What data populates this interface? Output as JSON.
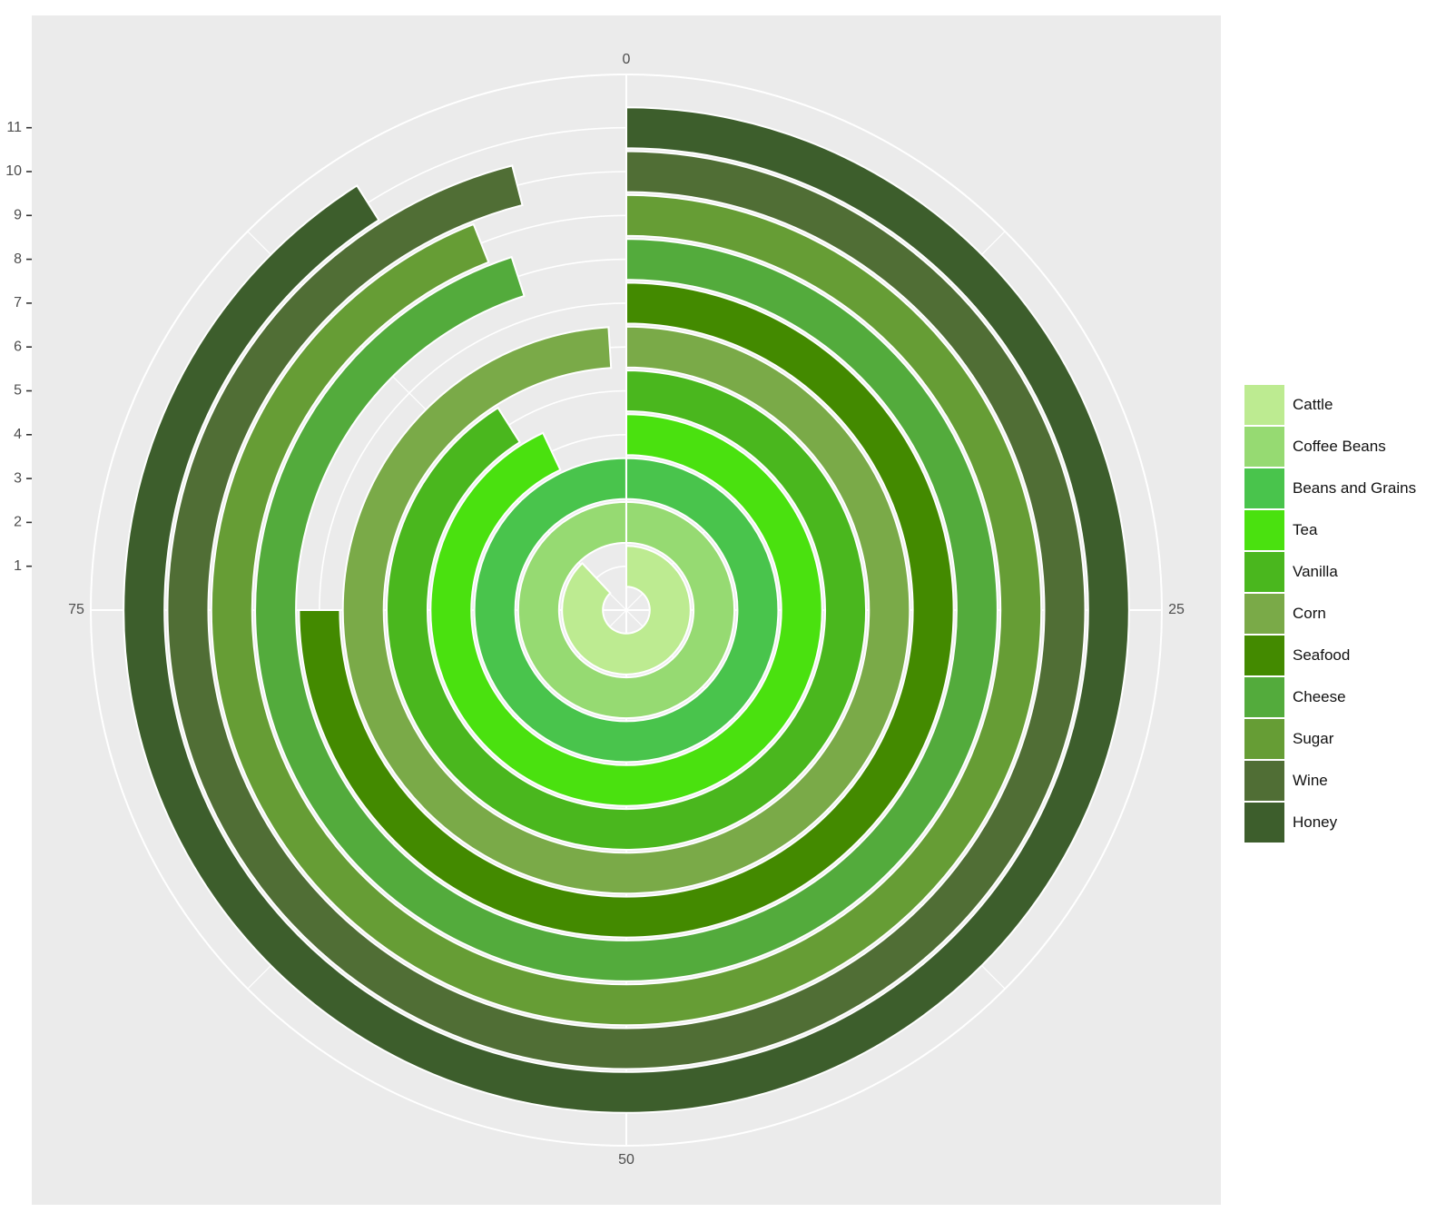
{
  "chart_data": {
    "type": "radial-bar",
    "title": "",
    "theta_ticks": [
      "0",
      "25",
      "50",
      "75"
    ],
    "theta_max": 100,
    "r_ticks": [
      "1",
      "2",
      "3",
      "4",
      "5",
      "6",
      "7",
      "8",
      "9",
      "10",
      "11"
    ],
    "categories": [
      "Cattle",
      "Coffee Beans",
      "Beans and Grains",
      "Tea",
      "Vanilla",
      "Corn",
      "Seafood",
      "Cheese",
      "Sugar",
      "Wine",
      "Honey"
    ],
    "values": [
      88,
      100,
      100,
      93,
      91,
      99,
      75,
      95,
      94,
      96,
      91
    ],
    "colors": [
      "#BDEB91",
      "#96DA72",
      "#49C44C",
      "#4AE10F",
      "#4AB71E",
      "#7AAA48",
      "#438A00",
      "#53AB3C",
      "#669D35",
      "#506E35",
      "#3D5E2C"
    ],
    "legend": {
      "position": "right",
      "entries": [
        "Cattle",
        "Coffee Beans",
        "Beans and Grains",
        "Tea",
        "Vanilla",
        "Corn",
        "Seafood",
        "Cheese",
        "Sugar",
        "Wine",
        "Honey"
      ]
    },
    "grid": true
  }
}
